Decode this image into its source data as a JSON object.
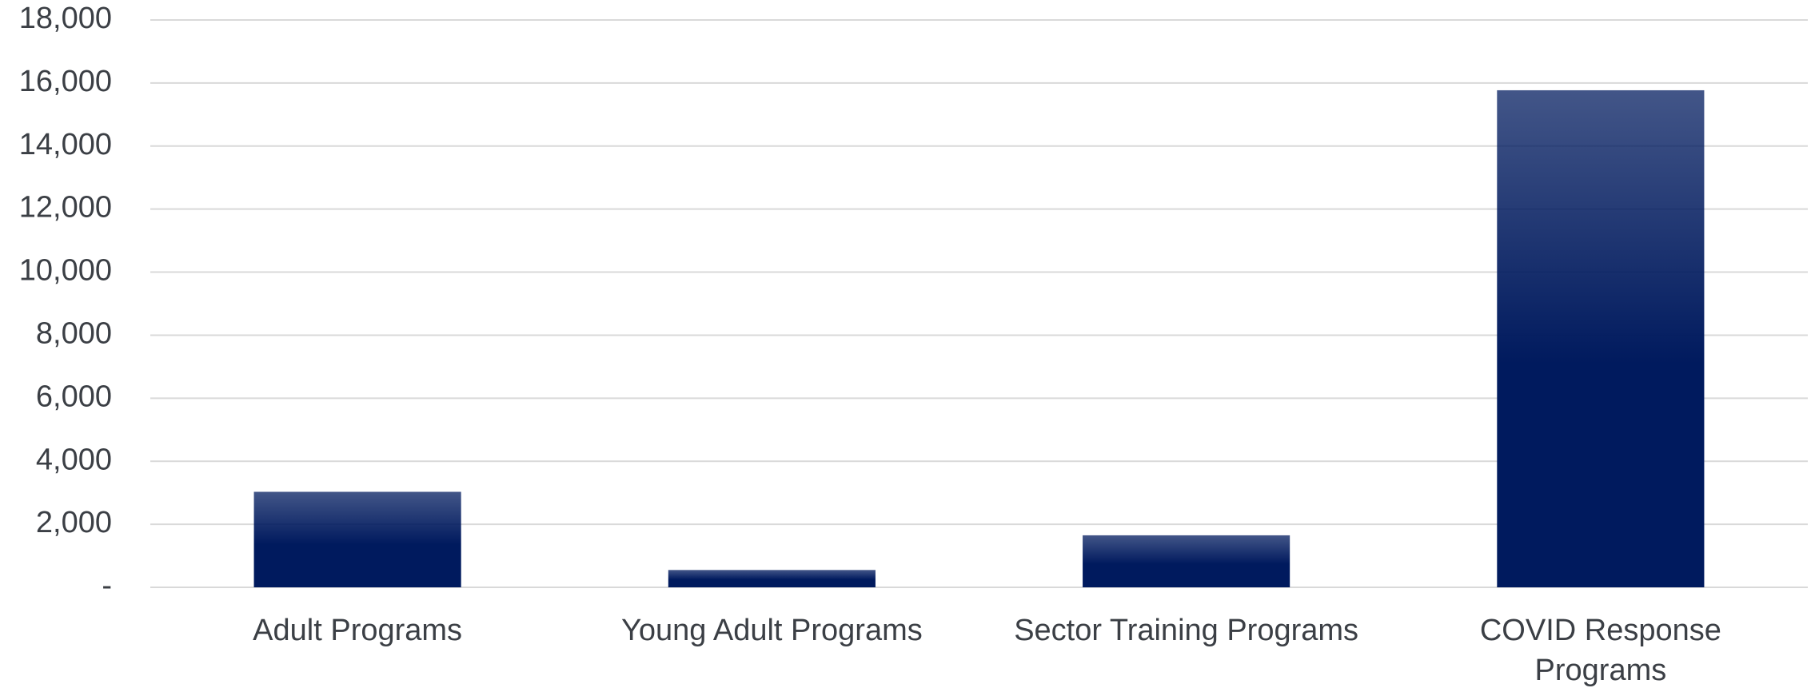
{
  "chart_data": {
    "type": "bar",
    "categories": [
      "Adult Programs",
      "Young Adult Programs",
      "Sector Training Programs",
      "COVID Response Programs"
    ],
    "values": [
      3030,
      550,
      1650,
      15770
    ],
    "color": "#001a5e",
    "ylim": [
      0,
      18000
    ],
    "yticks": [
      {
        "value": 0,
        "label": "-"
      },
      {
        "value": 2000,
        "label": "2,000"
      },
      {
        "value": 4000,
        "label": "4,000"
      },
      {
        "value": 6000,
        "label": "6,000"
      },
      {
        "value": 8000,
        "label": "8,000"
      },
      {
        "value": 10000,
        "label": "10,000"
      },
      {
        "value": 12000,
        "label": "12,000"
      },
      {
        "value": 14000,
        "label": "14,000"
      },
      {
        "value": 16000,
        "label": "16,000"
      },
      {
        "value": 18000,
        "label": "18,000"
      }
    ],
    "grid": true
  }
}
